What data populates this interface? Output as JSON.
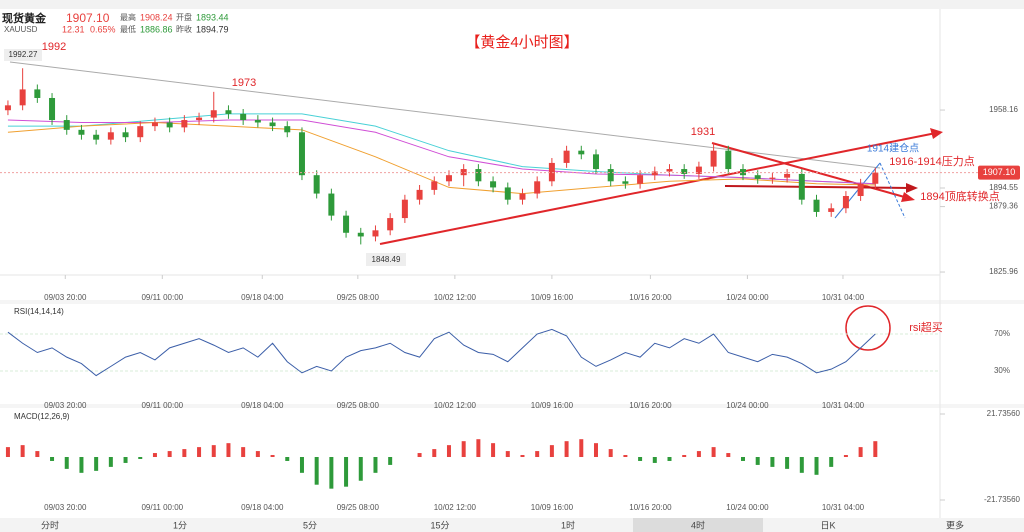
{
  "chart_data": {
    "type": "candlestick",
    "title": "【黄金4小时图】",
    "header": {
      "name": "现货黄金",
      "price": "1907.10",
      "symbol": "XAUUSD",
      "change": "12.31",
      "pct": "0.65%",
      "high_label": "最高",
      "high": "1908.24",
      "open_label": "开盘",
      "open": "1893.44",
      "low_label": "最低",
      "low": "1886.86",
      "prev_label": "昨收",
      "prev": "1894.79"
    },
    "open": [
      1958,
      1962,
      1975,
      1968,
      1950,
      1942,
      1938,
      1934,
      1940,
      1936,
      1945,
      1948,
      1944,
      1950,
      1952,
      1958,
      1955,
      1950,
      1948,
      1945,
      1940,
      1905,
      1890,
      1872,
      1858,
      1855,
      1860,
      1870,
      1885,
      1893,
      1900,
      1905,
      1910,
      1900,
      1895,
      1885,
      1890,
      1900,
      1915,
      1925,
      1922,
      1910,
      1900,
      1898,
      1905,
      1908,
      1910,
      1906,
      1912,
      1925,
      1910,
      1905,
      1902,
      1903,
      1906,
      1885,
      1875,
      1878,
      1888,
      1898
    ],
    "high": [
      1966,
      1992.27,
      1979,
      1972,
      1954,
      1946,
      1942,
      1944,
      1944,
      1949,
      1952,
      1952,
      1954,
      1956,
      1973,
      1962,
      1959,
      1954,
      1952,
      1949,
      1944,
      1909,
      1894,
      1876,
      1862,
      1864,
      1874,
      1889,
      1897,
      1904,
      1909,
      1914,
      1914,
      1904,
      1899,
      1894,
      1904,
      1919,
      1929,
      1929,
      1926,
      1914,
      1904,
      1909,
      1912,
      1914,
      1914,
      1916,
      1931,
      1929,
      1914,
      1909,
      1907,
      1910,
      1910,
      1889,
      1882,
      1892,
      1902,
      1911
    ],
    "low": [
      1954,
      1958,
      1964,
      1946,
      1938,
      1934,
      1930,
      1930,
      1932,
      1932,
      1941,
      1940,
      1940,
      1946,
      1948,
      1951,
      1946,
      1944,
      1941,
      1936,
      1901,
      1886,
      1868,
      1854,
      1848.49,
      1851,
      1856,
      1866,
      1881,
      1889,
      1896,
      1896,
      1896,
      1891,
      1881,
      1881,
      1886,
      1896,
      1911,
      1918,
      1906,
      1896,
      1894,
      1894,
      1901,
      1904,
      1902,
      1902,
      1908,
      1906,
      1901,
      1898,
      1898,
      1899,
      1881,
      1871,
      1871,
      1874,
      1884,
      1894
    ],
    "close": [
      1962,
      1975,
      1968,
      1950,
      1942,
      1938,
      1934,
      1940,
      1936,
      1945,
      1948,
      1944,
      1950,
      1952,
      1958,
      1955,
      1950,
      1948,
      1945,
      1940,
      1905,
      1890,
      1872,
      1858,
      1855,
      1860,
      1870,
      1885,
      1893,
      1900,
      1905,
      1910,
      1900,
      1895,
      1885,
      1890,
      1900,
      1915,
      1925,
      1922,
      1910,
      1900,
      1898,
      1905,
      1908,
      1910,
      1906,
      1912,
      1925,
      1910,
      1905,
      1902,
      1903,
      1906,
      1885,
      1875,
      1878,
      1888,
      1898,
      1907.1
    ],
    "colors": {
      "up": "#e8413e",
      "down": "#2e9a3a"
    },
    "ma_x": [
      0,
      5,
      10,
      15,
      20,
      25,
      30,
      35,
      40,
      45,
      50,
      55,
      59
    ],
    "ma": [
      {
        "color": "#49d1d6",
        "values": [
          1945,
          1945,
          1950,
          1955,
          1955,
          1945,
          1925,
          1912,
          1908,
          1905,
          1903,
          1900,
          1898
        ]
      },
      {
        "color": "#d04fd6",
        "values": [
          1950,
          1948,
          1948,
          1950,
          1950,
          1940,
          1920,
          1910,
          1906,
          1905,
          1903,
          1900,
          1898
        ]
      },
      {
        "color": "#f0a030",
        "values": [
          1940,
          1945,
          1948,
          1945,
          1942,
          1920,
          1895,
          1890,
          1895,
          1900,
          1902,
          1898,
          1897
        ]
      }
    ],
    "xlim": [
      -0.54,
      63.4
    ],
    "xticks": [
      {
        "value": 3.9,
        "label": "09/03 20:00"
      },
      {
        "value": 10.5,
        "label": "09/11 00:00"
      },
      {
        "value": 17.3,
        "label": "09/18 04:00"
      },
      {
        "value": 23.8,
        "label": "09/25 08:00"
      },
      {
        "value": 30.4,
        "label": "10/02 12:00"
      },
      {
        "value": 37,
        "label": "10/09 16:00"
      },
      {
        "value": 43.7,
        "label": "10/16 20:00"
      },
      {
        "value": 50.3,
        "label": "10/24 00:00"
      },
      {
        "value": 56.8,
        "label": "10/31 04:00"
      }
    ],
    "ylim": [
      1811.3,
      2039.8
    ],
    "yticks": [
      1958.16,
      1894.55,
      1879.36,
      1825.96
    ],
    "last": 1907.1,
    "last_label": "1907.10",
    "annotations": {
      "p1992": "1992",
      "p1992v": "1992.27",
      "p1973": "1973",
      "p1931": "1931",
      "low": "1848.49",
      "entry": "1914建仓点",
      "pressure": "1916-1914压力点",
      "switch": "1894顶底转换点",
      "rsi": "rsi超买"
    },
    "rsi": {
      "label": "RSI(14,14,14)",
      "color": "#3b5ea8",
      "ylim": [
        -6.8,
        101.4
      ],
      "yticks": [
        {
          "value": 70,
          "label": "70%"
        },
        {
          "value": 30,
          "label": "30%"
        }
      ],
      "values": [
        72,
        60,
        50,
        55,
        45,
        38,
        25,
        35,
        45,
        50,
        42,
        55,
        60,
        65,
        58,
        50,
        55,
        45,
        60,
        40,
        28,
        35,
        30,
        45,
        52,
        55,
        60,
        50,
        45,
        65,
        72,
        58,
        50,
        48,
        40,
        55,
        70,
        75,
        68,
        45,
        35,
        42,
        50,
        45,
        60,
        55,
        65,
        60,
        70,
        50,
        45,
        40,
        48,
        45,
        38,
        28,
        32,
        40,
        55,
        70
      ]
    },
    "macd": {
      "label": "MACD(12,26,9)",
      "ylim": [
        -27.8,
        23.76
      ],
      "yticks": [
        {
          "value": 21.7356,
          "label": "21.73560"
        },
        {
          "value": -21.7356,
          "label": "-21.73560"
        }
      ],
      "values": [
        5,
        6,
        3,
        -2,
        -6,
        -8,
        -7,
        -5,
        -3,
        -1,
        2,
        3,
        4,
        5,
        6,
        7,
        5,
        3,
        1,
        -2,
        -8,
        -14,
        -16,
        -15,
        -12,
        -8,
        -4,
        0,
        2,
        4,
        6,
        8,
        9,
        7,
        3,
        1,
        3,
        6,
        8,
        9,
        7,
        4,
        1,
        -2,
        -3,
        -2,
        1,
        3,
        5,
        2,
        -2,
        -4,
        -5,
        -6,
        -8,
        -9,
        -5,
        1,
        5,
        8
      ]
    },
    "tabs": [
      "分时",
      "1分",
      "5分",
      "15分",
      "1时",
      "4时",
      "日K",
      "更多"
    ]
  }
}
